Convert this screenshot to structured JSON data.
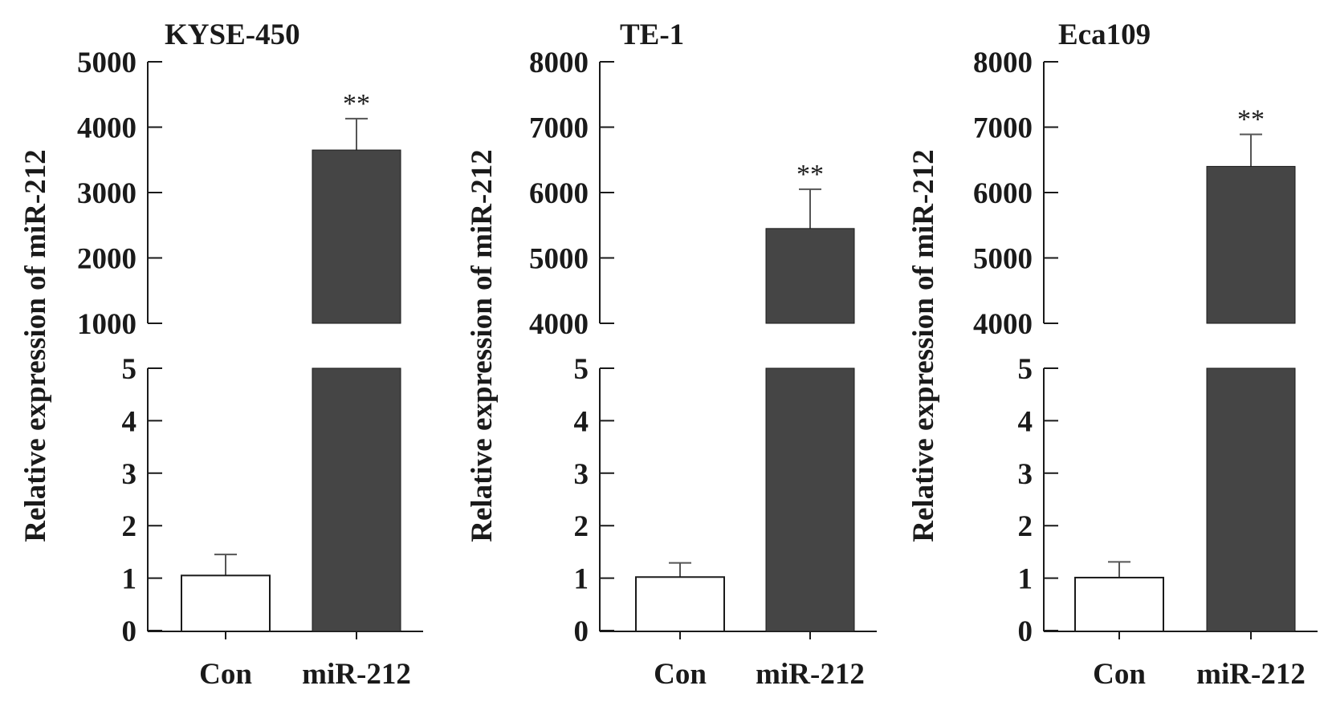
{
  "colors": {
    "axis": "#1a1a1a",
    "control_fill": "#ffffff",
    "treatment_fill": "#454545",
    "bar_stroke": "#1a1a1a",
    "error_bar": "#555555"
  },
  "chart_data": [
    {
      "type": "bar",
      "title": "KYSE-450",
      "ylabel": "Relative expression of miR-212",
      "categories": [
        "Con",
        "miR-212"
      ],
      "values": [
        1.05,
        3650
      ],
      "errors": [
        0.4,
        480
      ],
      "significance": [
        "",
        "**"
      ],
      "y_axis_break": true,
      "ylim_lower": [
        0,
        5
      ],
      "ylim_upper": [
        1000,
        5000
      ],
      "yticks_lower": [
        "0",
        "1",
        "2",
        "3",
        "4",
        "5"
      ],
      "yticks_upper": [
        "1000",
        "2000",
        "3000",
        "4000",
        "5000"
      ],
      "grid": false,
      "legend": "none"
    },
    {
      "type": "bar",
      "title": "TE-1",
      "ylabel": "Relative expression of miR-212",
      "categories": [
        "Con",
        "miR-212"
      ],
      "values": [
        1.02,
        5450
      ],
      "errors": [
        0.27,
        600
      ],
      "significance": [
        "",
        "**"
      ],
      "y_axis_break": true,
      "ylim_lower": [
        0,
        5
      ],
      "ylim_upper": [
        4000,
        8000
      ],
      "yticks_lower": [
        "0",
        "1",
        "2",
        "3",
        "4",
        "5"
      ],
      "yticks_upper": [
        "4000",
        "5000",
        "6000",
        "7000",
        "8000"
      ],
      "grid": false,
      "legend": "none"
    },
    {
      "type": "bar",
      "title": "Eca109",
      "ylabel": "Relative expression of miR-212",
      "categories": [
        "Con",
        "miR-212"
      ],
      "values": [
        1.01,
        6400
      ],
      "errors": [
        0.3,
        490
      ],
      "significance": [
        "",
        "**"
      ],
      "y_axis_break": true,
      "ylim_lower": [
        0,
        5
      ],
      "ylim_upper": [
        4000,
        8000
      ],
      "yticks_lower": [
        "0",
        "1",
        "2",
        "3",
        "4",
        "5"
      ],
      "yticks_upper": [
        "4000",
        "5000",
        "6000",
        "7000",
        "8000"
      ],
      "grid": false,
      "legend": "none"
    }
  ]
}
